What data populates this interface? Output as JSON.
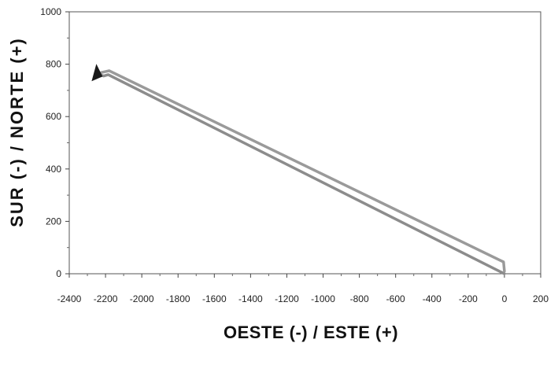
{
  "chart_data": {
    "type": "line",
    "xlabel": "OESTE (-) / ESTE (+)",
    "ylabel": "SUR (-) / NORTE (+)",
    "xlim": [
      -2400,
      200
    ],
    "ylim": [
      0,
      1000
    ],
    "x_ticks": [
      -2400,
      -2200,
      -2000,
      -1800,
      -1600,
      -1400,
      -1200,
      -1000,
      -800,
      -600,
      -400,
      -200,
      0,
      200
    ],
    "y_ticks": [
      0,
      200,
      400,
      600,
      800,
      1000
    ],
    "grid": false,
    "series": [
      {
        "color": "#8c8c8c",
        "x": [
          0,
          -2185,
          -2210,
          -2240
        ],
        "y": [
          0,
          760,
          755,
          762
        ]
      },
      {
        "color": "#9a9a9a",
        "x": [
          0,
          -5,
          -2180,
          -2225
        ],
        "y": [
          10,
          45,
          775,
          768
        ]
      }
    ],
    "marker": {
      "shape": "triangle",
      "x": -2255,
      "y": 765,
      "color": "#1a1a1a"
    }
  }
}
